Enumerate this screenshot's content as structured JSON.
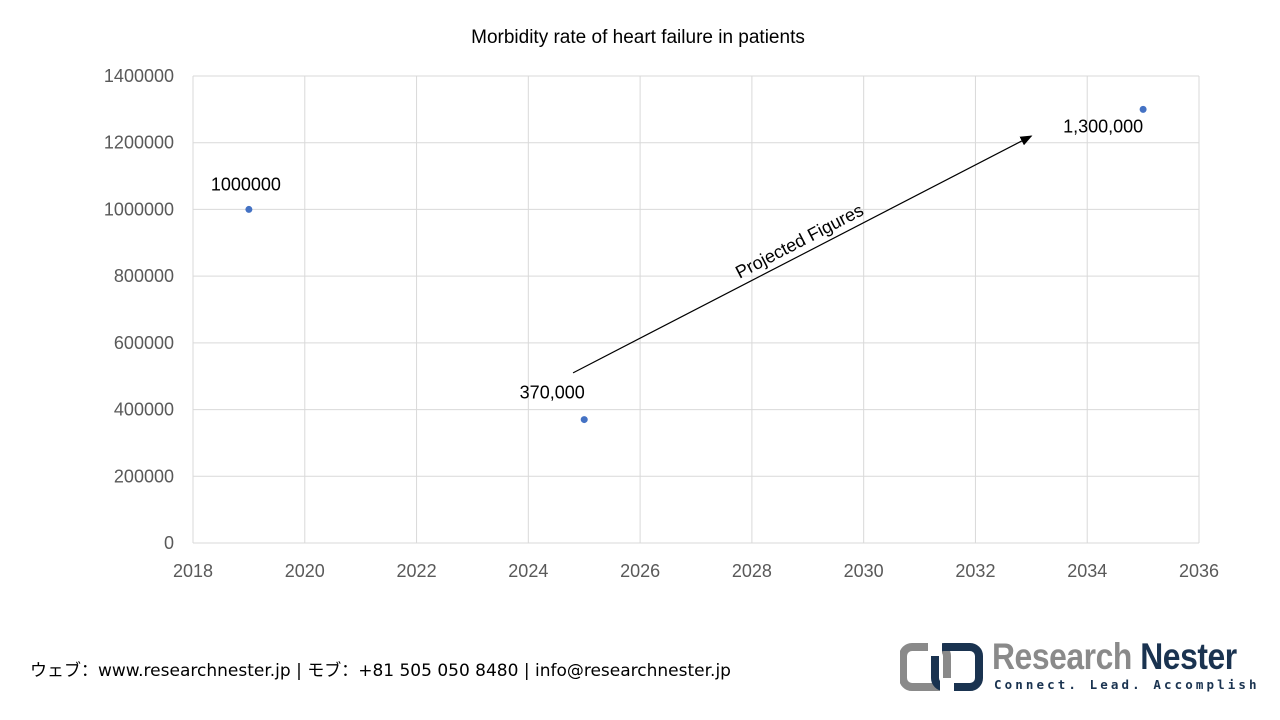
{
  "chart_data": {
    "type": "scatter",
    "title": "Morbidity rate of heart failure in patients",
    "xlim": [
      2018,
      2036
    ],
    "ylim": [
      0,
      1400000
    ],
    "x_ticks": [
      "2018",
      "2020",
      "2022",
      "2024",
      "2026",
      "2028",
      "2030",
      "2032",
      "2034",
      "2036"
    ],
    "y_ticks": [
      "0",
      "200000",
      "400000",
      "600000",
      "800000",
      "1000000",
      "1200000",
      "1400000"
    ],
    "grid": true,
    "series": [
      {
        "color": "#4472C4",
        "points": [
          {
            "x": 2019,
            "y": 1000000,
            "label": "1000000"
          },
          {
            "x": 2025,
            "y": 370000,
            "label": "370,000"
          },
          {
            "x": 2035,
            "y": 1300000,
            "label": "1,300,000"
          }
        ]
      }
    ],
    "annotation": {
      "text": "Projected Figures",
      "from": {
        "x": 2024.8,
        "y": 510000
      },
      "to": {
        "x": 2033,
        "y": 1220000
      }
    }
  },
  "footer": {
    "contact": "ウェブ：www.researchnester.jp | モブ：+81 505 050 8480 | info@researchnester.jp"
  },
  "logo": {
    "name_part1": "Research",
    "name_part2": "Nester",
    "tagline": "Connect. Lead. Accomplish"
  }
}
